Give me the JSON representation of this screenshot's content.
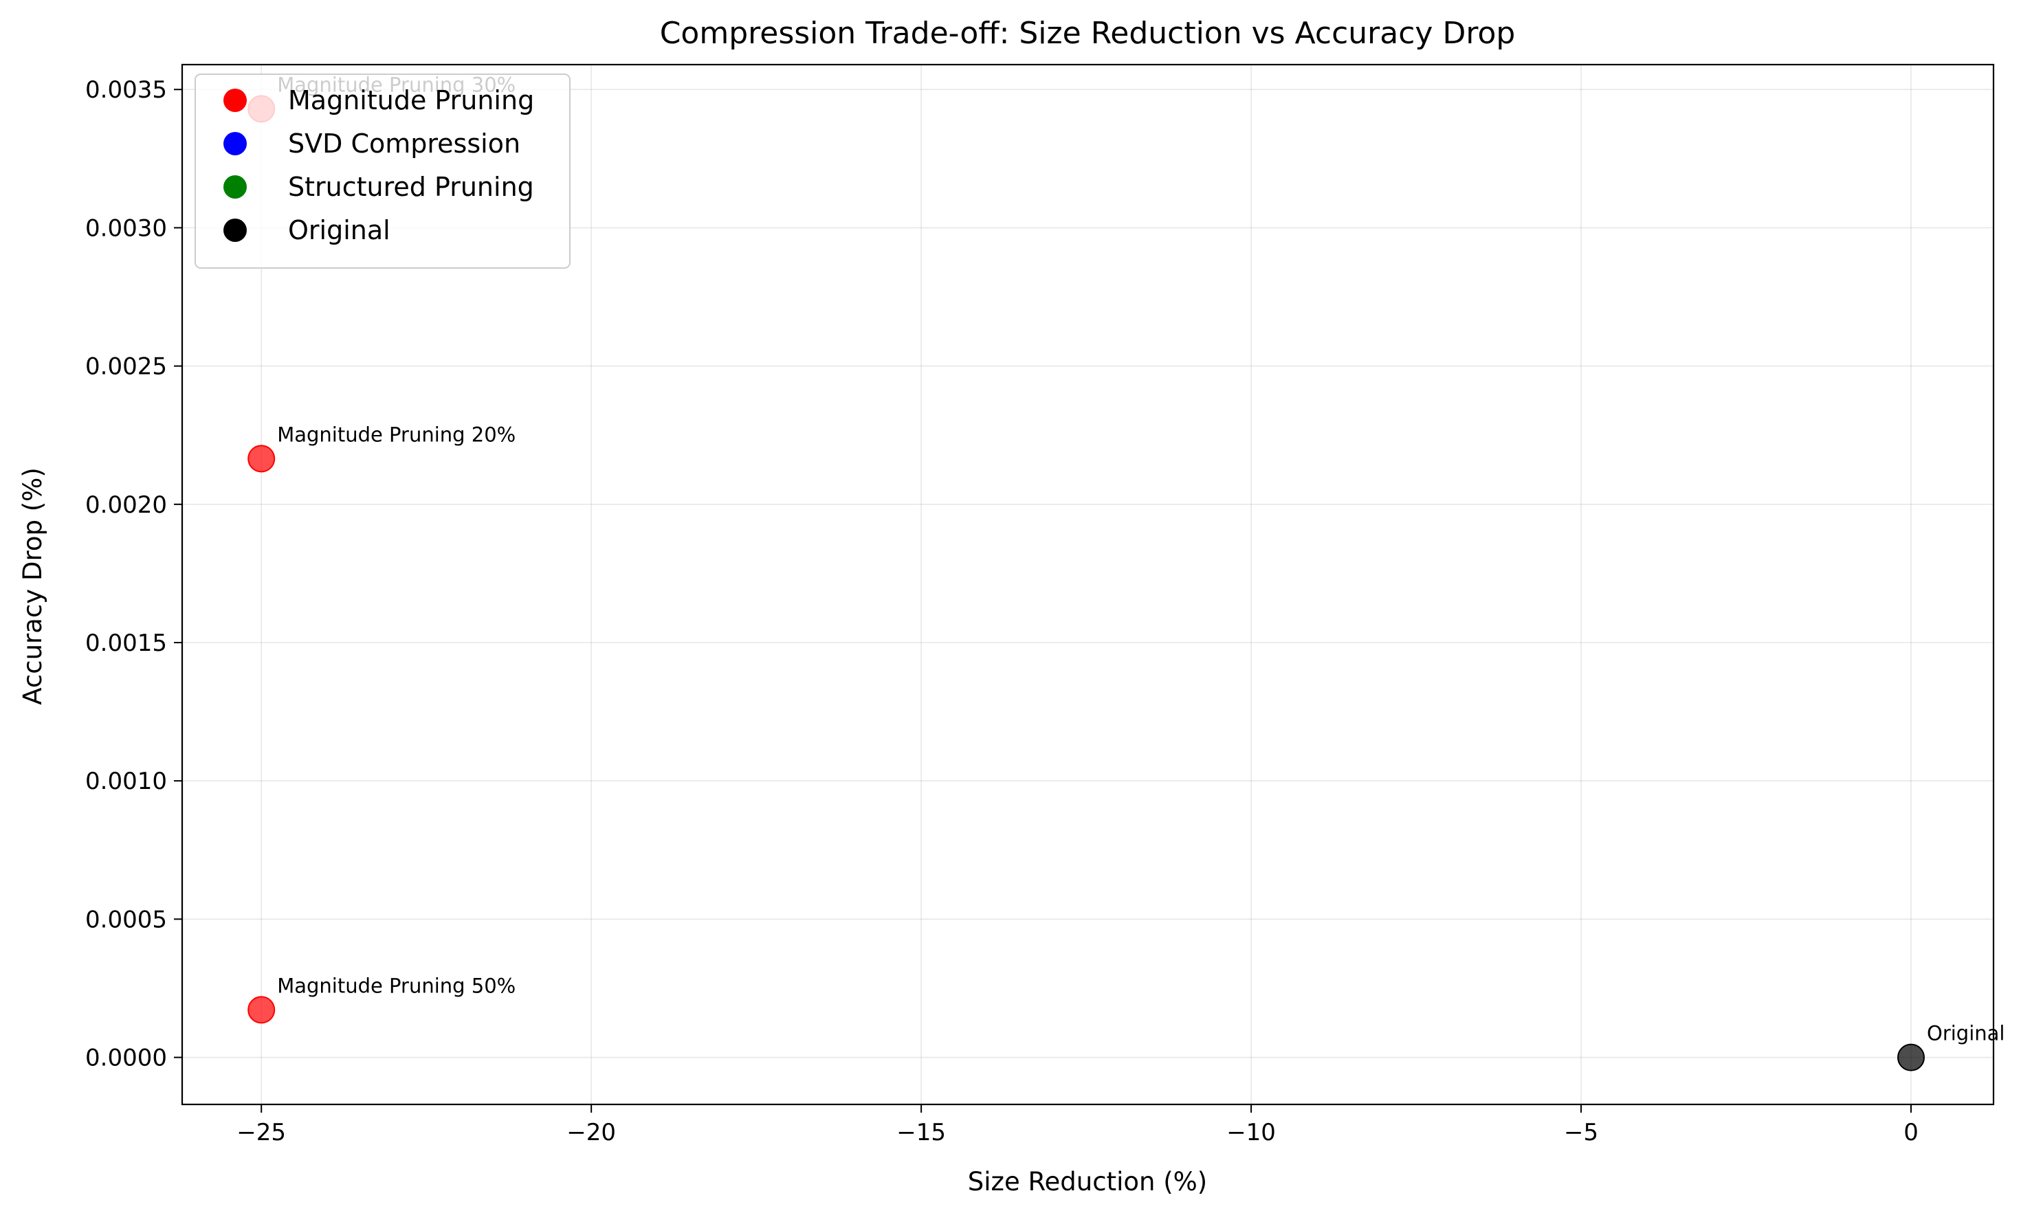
{
  "chart_data": {
    "type": "scatter",
    "title": "Compression Trade-off: Size Reduction vs Accuracy Drop",
    "xlabel": "Size Reduction (%)",
    "ylabel": "Accuracy Drop (%)",
    "xlim": [
      -26.2,
      1.25
    ],
    "ylim": [
      -0.00017,
      0.00359
    ],
    "xticks": [
      -25,
      -20,
      -15,
      -10,
      -5,
      0
    ],
    "xtick_labels": [
      "−25",
      "−20",
      "−15",
      "−10",
      "−5",
      "0"
    ],
    "yticks": [
      0.0,
      0.0005,
      0.001,
      0.0015,
      0.002,
      0.0025,
      0.003,
      0.0035
    ],
    "ytick_labels": [
      "0.0000",
      "0.0005",
      "0.0010",
      "0.0015",
      "0.0020",
      "0.0025",
      "0.0030",
      "0.0035"
    ],
    "grid": true,
    "legend_position": "top-left",
    "legend": [
      {
        "label": "Magnitude Pruning",
        "color": "#ff0000"
      },
      {
        "label": "SVD Compression",
        "color": "#0000ff"
      },
      {
        "label": "Structured Pruning",
        "color": "#008000"
      },
      {
        "label": "Original",
        "color": "#000000"
      }
    ],
    "points": [
      {
        "label": "Magnitude Pruning 30%",
        "x": -25.0,
        "y": 0.00343,
        "color": "#ff0000"
      },
      {
        "label": "Magnitude Pruning 20%",
        "x": -25.0,
        "y": 0.002165,
        "color": "#ff0000"
      },
      {
        "label": "Magnitude Pruning 50%",
        "x": -25.0,
        "y": 0.000172,
        "color": "#ff0000"
      },
      {
        "label": "Original",
        "x": 0.0,
        "y": 0.0,
        "color": "#000000"
      }
    ]
  }
}
